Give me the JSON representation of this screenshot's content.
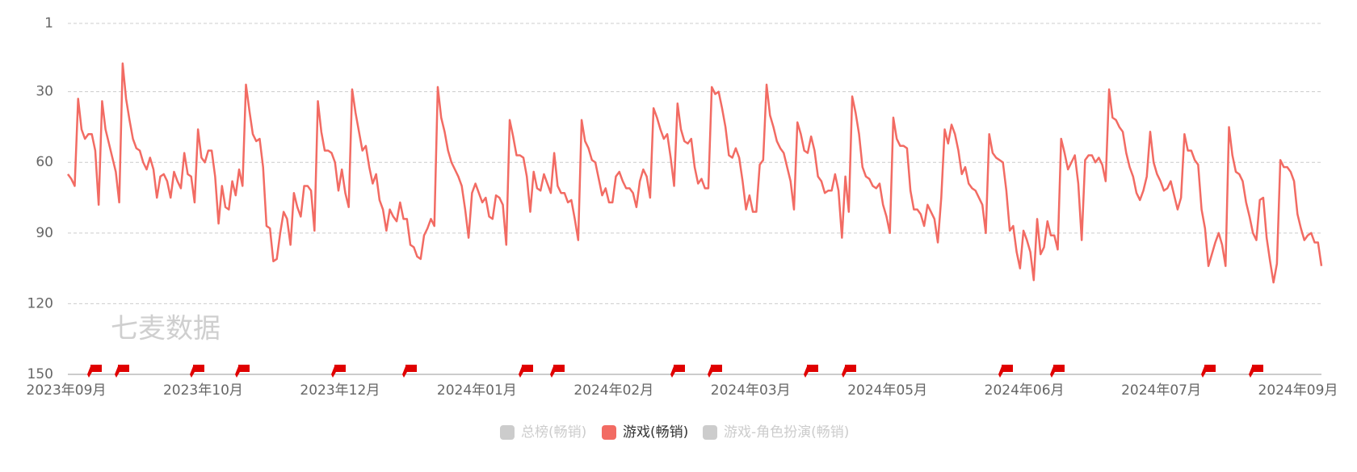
{
  "chart_data": {
    "type": "line",
    "watermark": "七麦数据",
    "x_tick_labels": [
      "2023年09月",
      "2023年10月",
      "2023年12月",
      "2024年01月",
      "2024年02月",
      "2024年03月",
      "2024年05月",
      "2024年06月",
      "2024年07月",
      "2024年09月"
    ],
    "ylim": [
      1,
      150
    ],
    "yticks": [
      1,
      30,
      60,
      90,
      120,
      150
    ],
    "y_inverted": true,
    "grid": true,
    "series": [
      {
        "name": "总榜(畅销)",
        "color": "#cccccc",
        "visible": false
      },
      {
        "name": "游戏(畅销)",
        "color": "#f26b63",
        "visible": true,
        "values": [
          65,
          67,
          70,
          33,
          46,
          50,
          48,
          48,
          55,
          78,
          34,
          46,
          52,
          58,
          64,
          77,
          18,
          33,
          42,
          50,
          54,
          55,
          60,
          63,
          58,
          63,
          75,
          66,
          65,
          68,
          75,
          64,
          68,
          71,
          56,
          65,
          66,
          77,
          46,
          58,
          60,
          55,
          55,
          66,
          86,
          70,
          79,
          80,
          68,
          74,
          63,
          70,
          27,
          38,
          48,
          51,
          50,
          62,
          87,
          88,
          102,
          101,
          90,
          81,
          84,
          95,
          73,
          79,
          83,
          70,
          70,
          72,
          89,
          34,
          47,
          55,
          55,
          56,
          60,
          72,
          63,
          73,
          79,
          29,
          39,
          47,
          55,
          53,
          62,
          69,
          65,
          76,
          80,
          89,
          80,
          83,
          85,
          77,
          84,
          84,
          95,
          96,
          100,
          101,
          91,
          88,
          84,
          87,
          28,
          41,
          47,
          55,
          60,
          63,
          66,
          70,
          80,
          92,
          73,
          69,
          73,
          77,
          75,
          83,
          84,
          74,
          75,
          78,
          95,
          42,
          49,
          57,
          57,
          58,
          66,
          81,
          64,
          71,
          72,
          65,
          69,
          73,
          56,
          70,
          73,
          73,
          77,
          76,
          84,
          93,
          42,
          51,
          54,
          59,
          60,
          67,
          74,
          71,
          77,
          77,
          66,
          64,
          68,
          71,
          71,
          73,
          79,
          68,
          63,
          66,
          75,
          37,
          41,
          46,
          50,
          48,
          58,
          70,
          35,
          46,
          51,
          52,
          50,
          62,
          69,
          67,
          71,
          71,
          28,
          31,
          30,
          37,
          45,
          57,
          58,
          54,
          58,
          68,
          80,
          74,
          81,
          81,
          61,
          59,
          27,
          40,
          45,
          51,
          54,
          56,
          62,
          68,
          80,
          43,
          48,
          55,
          56,
          49,
          55,
          66,
          68,
          73,
          72,
          72,
          65,
          72,
          92,
          66,
          81,
          32,
          39,
          48,
          62,
          66,
          67,
          70,
          71,
          69,
          78,
          83,
          90,
          41,
          50,
          53,
          53,
          54,
          72,
          80,
          80,
          82,
          87,
          78,
          81,
          84,
          94,
          75,
          46,
          52,
          44,
          48,
          55,
          65,
          62,
          69,
          71,
          72,
          75,
          78,
          90,
          48,
          56,
          58,
          59,
          60,
          72,
          89,
          87,
          98,
          105,
          89,
          93,
          98,
          110,
          84,
          99,
          96,
          85,
          91,
          91,
          97,
          50,
          56,
          63,
          60,
          57,
          69,
          93,
          59,
          57,
          57,
          60,
          58,
          61,
          68,
          29,
          41,
          42,
          45,
          47,
          56,
          62,
          66,
          73,
          76,
          72,
          66,
          47,
          60,
          65,
          68,
          72,
          71,
          68,
          74,
          80,
          75,
          48,
          55,
          55,
          59,
          61,
          80,
          88,
          104,
          99,
          94,
          90,
          95,
          104,
          45,
          57,
          64,
          65,
          68,
          77,
          83,
          90,
          93,
          76,
          75,
          92,
          102,
          111,
          103,
          59,
          62,
          62,
          64,
          68,
          82,
          88,
          93,
          91,
          90,
          94,
          94,
          104
        ]
      },
      {
        "name": "游戏-角色扮演(畅销)",
        "color": "#cccccc",
        "visible": false
      }
    ]
  }
}
